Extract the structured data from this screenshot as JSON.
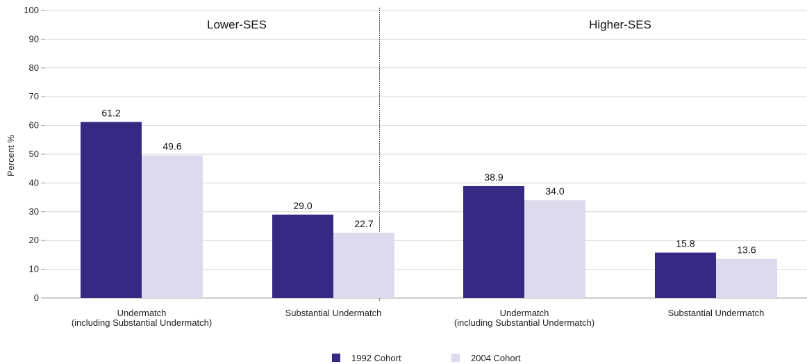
{
  "chart_data": {
    "type": "bar",
    "title": "",
    "ylabel": "Percent %",
    "xlabel": "",
    "ylim": [
      0,
      100
    ],
    "yticks": [
      0,
      10,
      20,
      30,
      40,
      50,
      60,
      70,
      80,
      90,
      100
    ],
    "grid": true,
    "legend_position": "bottom-center",
    "colors": {
      "1992 Cohort": "#342a83",
      "2004 Cohort": "#dcdaec"
    },
    "panels": [
      {
        "title": "Lower-SES",
        "categories": [
          [
            "Undermatch",
            "(including Substantial Undermatch)"
          ],
          [
            "Substantial Undermatch"
          ]
        ],
        "series": [
          {
            "name": "1992 Cohort",
            "values": [
              61.2,
              29.0
            ],
            "labels": [
              "61.2",
              "29.0"
            ]
          },
          {
            "name": "2004 Cohort",
            "values": [
              49.6,
              22.7
            ],
            "labels": [
              "49.6",
              "22.7"
            ]
          }
        ]
      },
      {
        "title": "Higher-SES",
        "categories": [
          [
            "Undermatch",
            "(including Substantial Undermatch)"
          ],
          [
            "Substantial Undermatch"
          ]
        ],
        "series": [
          {
            "name": "1992 Cohort",
            "values": [
              38.9,
              15.8
            ],
            "labels": [
              "38.9",
              "15.8"
            ]
          },
          {
            "name": "2004 Cohort",
            "values": [
              34.0,
              13.6
            ],
            "labels": [
              "34.0",
              "13.6"
            ]
          }
        ]
      }
    ],
    "legend": [
      "1992 Cohort",
      "2004 Cohort"
    ]
  }
}
